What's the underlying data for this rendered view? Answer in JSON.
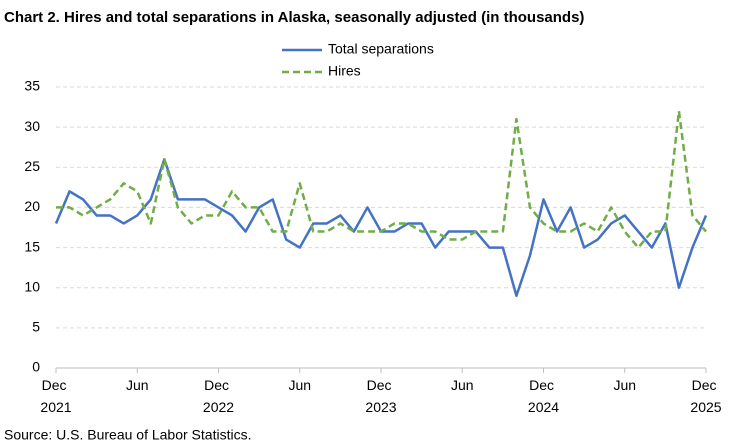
{
  "chart_data": {
    "type": "line",
    "title": "Chart 2. Hires and total separations in Alaska, seasonally adjusted (in thousands)",
    "source": "Source: U.S. Bureau of Labor Statistics.",
    "categories": [
      "Dec 2021",
      null,
      null,
      null,
      null,
      null,
      "Jun",
      null,
      null,
      null,
      null,
      null,
      "Dec 2022",
      null,
      null,
      null,
      null,
      null,
      "Jun",
      null,
      null,
      null,
      null,
      null,
      "Dec 2023",
      null,
      null,
      null,
      null,
      null,
      "Jun",
      null,
      null,
      null,
      null,
      null,
      "Dec 2024",
      null,
      null,
      null,
      null,
      null,
      "Jun",
      null,
      null,
      null,
      null,
      null,
      "Dec 2025"
    ],
    "series": [
      {
        "name": "Total separations",
        "color": "#4472c4",
        "dashed": false,
        "values": [
          18,
          22,
          21,
          19,
          19,
          18,
          19,
          21,
          26,
          21,
          21,
          21,
          20,
          19,
          17,
          20,
          21,
          16,
          15,
          18,
          18,
          19,
          17,
          20,
          17,
          17,
          18,
          18,
          15,
          17,
          17,
          17,
          15,
          15,
          9,
          14,
          21,
          17,
          20,
          15,
          16,
          18,
          19,
          17,
          15,
          18,
          10,
          15,
          19
        ]
      },
      {
        "name": "Hires",
        "color": "#70ad47",
        "dashed": true,
        "values": [
          20,
          20,
          19,
          20,
          21,
          23,
          22,
          18,
          26,
          20,
          18,
          19,
          19,
          22,
          20,
          20,
          17,
          17,
          23,
          17,
          17,
          18,
          17,
          17,
          17,
          18,
          18,
          17,
          17,
          16,
          16,
          17,
          17,
          17,
          31,
          20,
          18,
          17,
          17,
          18,
          17,
          20,
          17,
          15,
          17,
          17,
          32,
          19,
          17
        ]
      }
    ],
    "ylim": [
      0,
      35
    ],
    "yticks": [
      0,
      5,
      10,
      15,
      20,
      25,
      30,
      35
    ],
    "grid": true,
    "legend": "top"
  }
}
